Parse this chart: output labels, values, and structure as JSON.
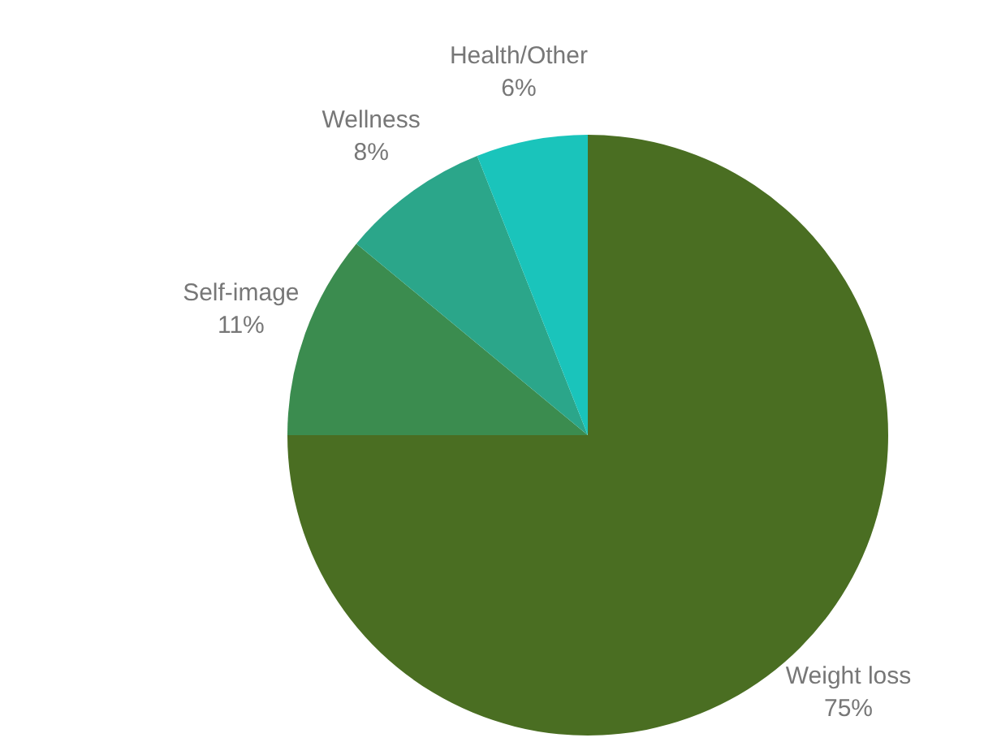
{
  "chart_data": {
    "type": "pie",
    "categories": [
      "Weight loss",
      "Self-image",
      "Wellness",
      "Health/Other"
    ],
    "values": [
      75,
      11,
      8,
      6
    ],
    "colors": [
      "#4a6e22",
      "#3b8c4f",
      "#2ba68a",
      "#1ac4bb"
    ],
    "value_labels": [
      "75%",
      "11%",
      "8%",
      "6%"
    ],
    "legend": false
  }
}
